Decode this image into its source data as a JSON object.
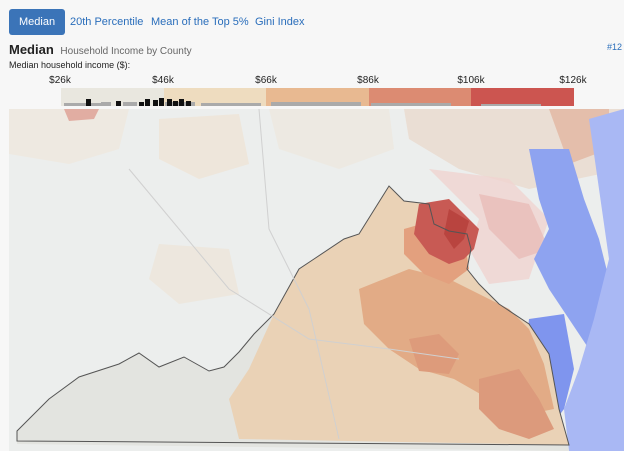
{
  "tabs": [
    {
      "label": "Median",
      "active": true
    },
    {
      "label": "20th Percentile",
      "active": false
    },
    {
      "label": "Mean of the Top 5%",
      "active": false
    },
    {
      "label": "Gini Index",
      "active": false
    }
  ],
  "header": {
    "title": "Median",
    "subtitle": "Household Income by County",
    "corner_text": "#12"
  },
  "legend": {
    "label": "Median household income ($):",
    "ticks": [
      "$26k",
      "$46k",
      "$66k",
      "$86k",
      "$106k",
      "$126k"
    ],
    "colors": [
      "#e9e7df",
      "#eedcbf",
      "#e8b991",
      "#dc8b72",
      "#cc5550"
    ]
  },
  "map": {
    "region": "Virginia",
    "water_color": "#8ea3f0",
    "land_color": "#eceeed"
  }
}
